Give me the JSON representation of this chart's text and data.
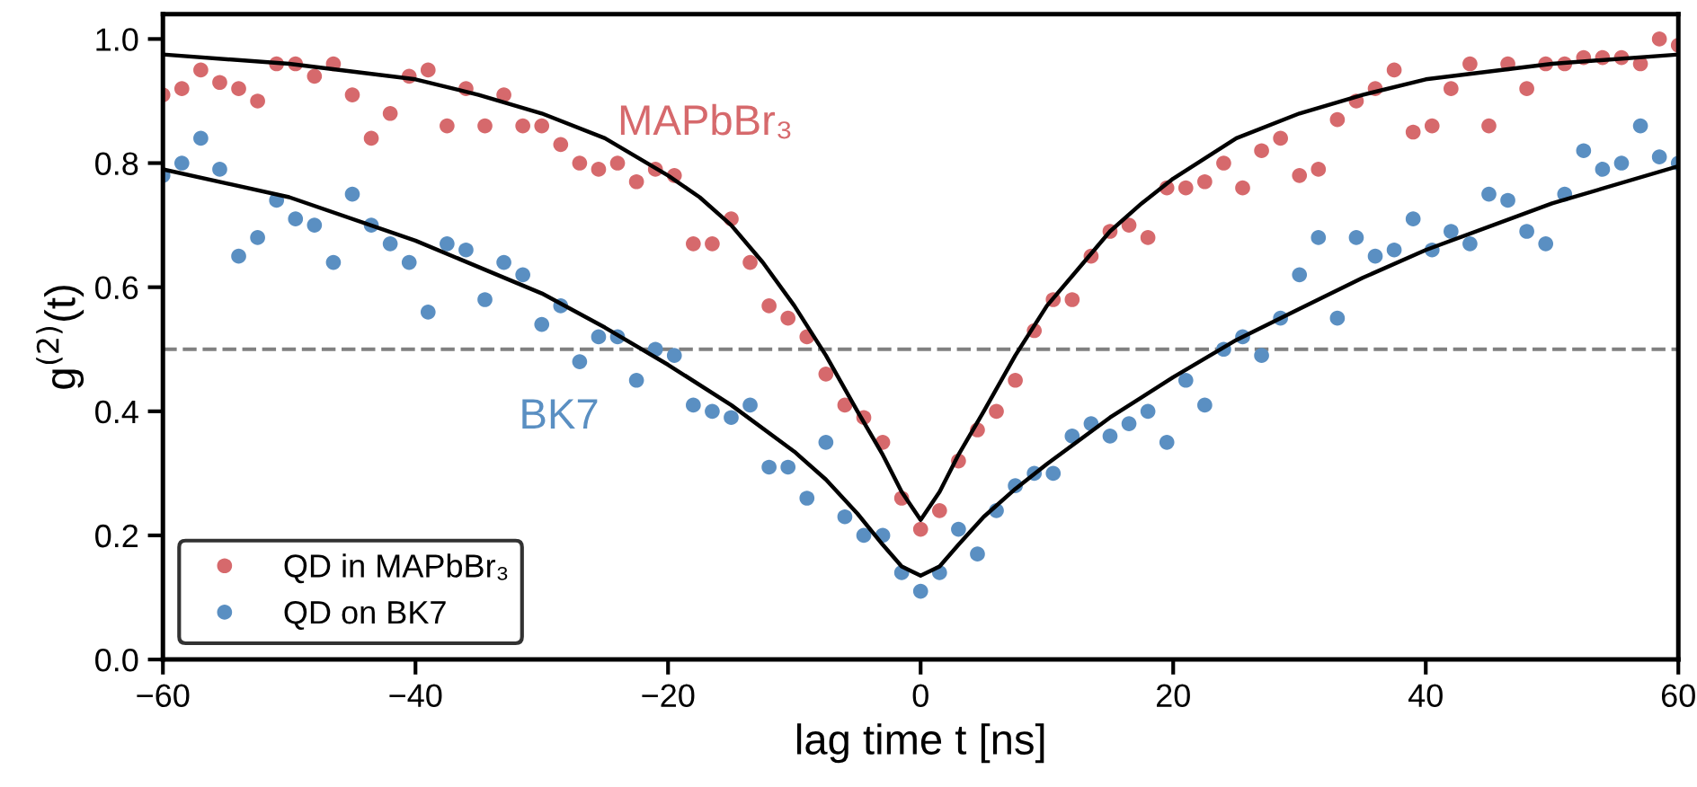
{
  "chart_data": {
    "type": "scatter",
    "xlabel": "lag time t [ns]",
    "ylabel": "g$^{(2)}$(t)",
    "xlim": [
      -60,
      60
    ],
    "xticks": [
      -60,
      -40,
      -20,
      0,
      20,
      40,
      60
    ],
    "ylim": [
      0,
      1.04
    ],
    "yticks": [
      {
        "value": 0,
        "label": "0.0"
      },
      {
        "value": 0.2,
        "label": "0.2"
      },
      {
        "value": 0.4,
        "label": "0.4"
      },
      {
        "value": 0.6,
        "label": "0.6"
      },
      {
        "value": 0.8,
        "label": "0.8"
      },
      {
        "value": 1.0,
        "label": "1.0"
      }
    ],
    "grid": false,
    "legend": "bottom left",
    "marker": "circle",
    "ref_lines": [
      {
        "axis": "y",
        "value": 0.5,
        "color": "#808080",
        "line_style": "dashed"
      }
    ],
    "annotations": [
      "MAPbBr₃",
      "BK7"
    ],
    "series": [
      {
        "name": "QD in MAPbBr₃",
        "color": "#d6696c",
        "x": [
          -60,
          -58.5,
          -57,
          -55.5,
          -54,
          -52.5,
          -51,
          -49.5,
          -48,
          -46.5,
          -45,
          -43.5,
          -42,
          -40.5,
          -39,
          -37.5,
          -36,
          -34.5,
          -33,
          -31.5,
          -30,
          -28.5,
          -27,
          -25.5,
          -24,
          -22.5,
          -21,
          -19.5,
          -18,
          -16.5,
          -15,
          -13.5,
          -12,
          -10.5,
          -9,
          -7.5,
          -6,
          -4.5,
          -3,
          -1.5,
          0,
          1.5,
          3,
          4.5,
          6,
          7.5,
          9,
          10.5,
          12,
          13.5,
          15,
          16.5,
          18,
          19.5,
          21,
          22.5,
          24,
          25.5,
          27,
          28.5,
          30,
          31.5,
          33,
          34.5,
          36,
          37.5,
          39,
          40.5,
          42,
          43.5,
          45,
          46.5,
          48,
          49.5,
          51,
          52.5,
          54,
          55.5,
          57,
          58.5,
          60
        ],
        "values": [
          0.91,
          0.92,
          0.95,
          0.93,
          0.92,
          0.9,
          0.96,
          0.96,
          0.94,
          0.96,
          0.91,
          0.84,
          0.88,
          0.94,
          0.95,
          0.86,
          0.92,
          0.86,
          0.91,
          0.86,
          0.86,
          0.83,
          0.8,
          0.79,
          0.8,
          0.77,
          0.79,
          0.78,
          0.67,
          0.67,
          0.71,
          0.64,
          0.57,
          0.55,
          0.52,
          0.46,
          0.41,
          0.39,
          0.35,
          0.26,
          0.21,
          0.24,
          0.32,
          0.37,
          0.4,
          0.45,
          0.53,
          0.58,
          0.58,
          0.65,
          0.69,
          0.7,
          0.68,
          0.76,
          0.76,
          0.77,
          0.8,
          0.76,
          0.82,
          0.84,
          0.78,
          0.79,
          0.87,
          0.9,
          0.92,
          0.95,
          0.85,
          0.86,
          0.92,
          0.96,
          0.86,
          0.96,
          0.92,
          0.96,
          0.96,
          0.97,
          0.97,
          0.97,
          0.96,
          1.0,
          0.99
        ]
      },
      {
        "name": "QD on BK7",
        "color": "#5a8fc2",
        "x": [
          -60,
          -58.5,
          -57,
          -55.5,
          -54,
          -52.5,
          -51,
          -49.5,
          -48,
          -46.5,
          -45,
          -43.5,
          -42,
          -40.5,
          -39,
          -37.5,
          -36,
          -34.5,
          -33,
          -31.5,
          -30,
          -28.5,
          -27,
          -25.5,
          -24,
          -22.5,
          -21,
          -19.5,
          -18,
          -16.5,
          -15,
          -13.5,
          -12,
          -10.5,
          -9,
          -7.5,
          -6,
          -4.5,
          -3,
          -1.5,
          0,
          1.5,
          3,
          4.5,
          6,
          7.5,
          9,
          10.5,
          12,
          13.5,
          15,
          16.5,
          18,
          19.5,
          21,
          22.5,
          24,
          25.5,
          27,
          28.5,
          30,
          31.5,
          33,
          34.5,
          36,
          37.5,
          39,
          40.5,
          42,
          43.5,
          45,
          46.5,
          48,
          49.5,
          51,
          52.5,
          54,
          55.5,
          57,
          58.5,
          60
        ],
        "values": [
          0.78,
          0.8,
          0.84,
          0.79,
          0.65,
          0.68,
          0.74,
          0.71,
          0.7,
          0.64,
          0.75,
          0.7,
          0.67,
          0.64,
          0.56,
          0.67,
          0.66,
          0.58,
          0.64,
          0.62,
          0.54,
          0.57,
          0.48,
          0.52,
          0.52,
          0.45,
          0.5,
          0.49,
          0.41,
          0.4,
          0.39,
          0.41,
          0.31,
          0.31,
          0.26,
          0.35,
          0.23,
          0.2,
          0.2,
          0.14,
          0.11,
          0.14,
          0.21,
          0.17,
          0.24,
          0.28,
          0.3,
          0.3,
          0.36,
          0.38,
          0.36,
          0.38,
          0.4,
          0.35,
          0.45,
          0.41,
          0.5,
          0.52,
          0.49,
          0.55,
          0.62,
          0.68,
          0.55,
          0.68,
          0.65,
          0.66,
          0.71,
          0.66,
          0.69,
          0.67,
          0.75,
          0.74,
          0.69,
          0.67,
          0.75,
          0.82,
          0.79,
          0.8,
          0.86,
          0.81,
          0.8
        ]
      },
      {
        "type": "line",
        "color": "#000000",
        "marker": "none",
        "x": [
          -60,
          -50,
          -40,
          -35,
          -30,
          -25,
          -20,
          -17.5,
          -15,
          -12.5,
          -10,
          -7.5,
          -5,
          -3,
          -1.5,
          0,
          1.5,
          3,
          5,
          7.5,
          10,
          12.5,
          15,
          17.5,
          20,
          25,
          30,
          35,
          40,
          50,
          60
        ],
        "values": [
          0.975,
          0.96,
          0.935,
          0.91,
          0.88,
          0.84,
          0.78,
          0.745,
          0.7,
          0.64,
          0.57,
          0.49,
          0.4,
          0.33,
          0.27,
          0.225,
          0.27,
          0.33,
          0.4,
          0.49,
          0.57,
          0.63,
          0.69,
          0.735,
          0.775,
          0.84,
          0.88,
          0.91,
          0.935,
          0.96,
          0.975
        ]
      },
      {
        "type": "line",
        "color": "#000000",
        "marker": "none",
        "x": [
          -60,
          -50,
          -40,
          -30,
          -25,
          -20,
          -15,
          -10,
          -7.5,
          -5,
          -3,
          -1.5,
          0,
          1.5,
          3,
          5,
          7.5,
          10,
          15,
          20,
          25,
          30,
          35,
          40,
          50,
          60
        ],
        "values": [
          0.79,
          0.745,
          0.675,
          0.59,
          0.535,
          0.475,
          0.41,
          0.335,
          0.29,
          0.235,
          0.185,
          0.15,
          0.135,
          0.15,
          0.185,
          0.23,
          0.275,
          0.315,
          0.39,
          0.455,
          0.515,
          0.565,
          0.615,
          0.66,
          0.735,
          0.795
        ]
      }
    ]
  }
}
